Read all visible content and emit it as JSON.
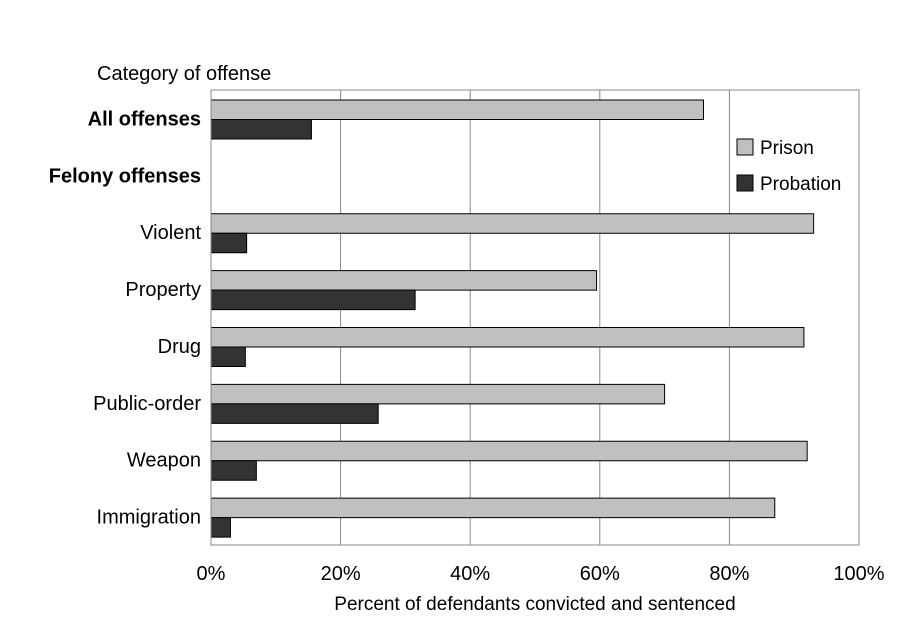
{
  "chart_data": {
    "type": "bar",
    "orientation": "horizontal",
    "y_axis_title": "Category of offense",
    "xlabel": "Percent of defendants convicted and sentenced",
    "xlim": [
      0,
      100
    ],
    "x_ticks": [
      "0%",
      "20%",
      "40%",
      "60%",
      "80%",
      "100%"
    ],
    "grid": "vertical",
    "legend_position": "top-right",
    "categories": [
      {
        "label": "All offenses",
        "bold": true,
        "prison": 76,
        "probation": 15.5
      },
      {
        "label": "Felony offenses",
        "bold": true,
        "heading": true
      },
      {
        "label": "Violent",
        "prison": 93,
        "probation": 5.5
      },
      {
        "label": "Property",
        "prison": 59.5,
        "probation": 31.5
      },
      {
        "label": "Drug",
        "prison": 91.5,
        "probation": 5.3
      },
      {
        "label": "Public-order",
        "prison": 70,
        "probation": 25.8
      },
      {
        "label": "Weapon",
        "prison": 92,
        "probation": 7
      },
      {
        "label": "Immigration",
        "prison": 87,
        "probation": 3
      }
    ],
    "series": [
      {
        "name": "Prison",
        "key": "prison",
        "color": "#c0c0c0"
      },
      {
        "name": "Probation",
        "key": "probation",
        "color": "#333333"
      }
    ]
  }
}
